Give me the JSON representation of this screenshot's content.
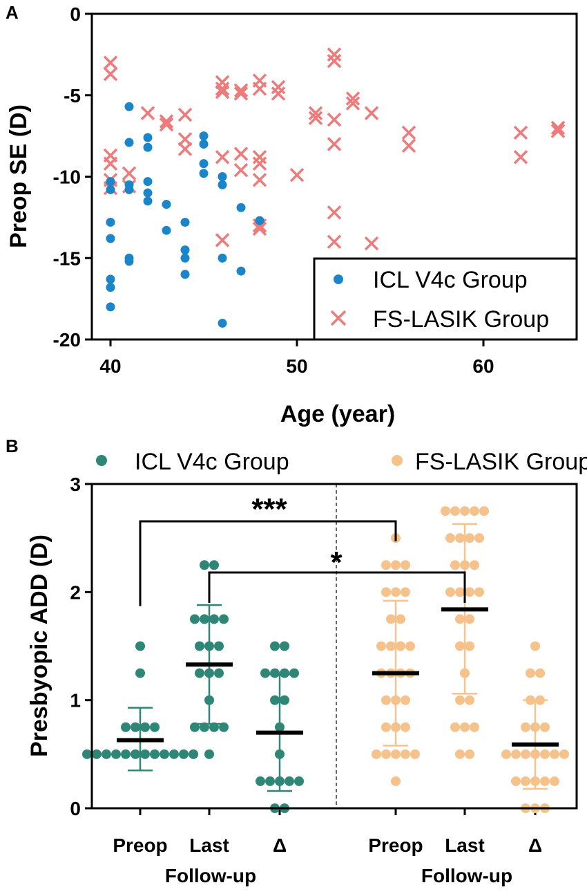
{
  "panel_a_label": "A",
  "panel_b_label": "B",
  "chart_data": [
    {
      "type": "scatter",
      "xlabel": "Age (year)",
      "ylabel": "Preop SE (D)",
      "xlim": [
        39,
        65
      ],
      "ylim": [
        -20,
        0
      ],
      "xticks": [
        40,
        50,
        60
      ],
      "yticks": [
        0,
        -5,
        -10,
        -15,
        -20
      ],
      "xtick_labels": [
        "40",
        "50",
        "60"
      ],
      "ytick_labels": [
        "0",
        "-5",
        "-10",
        "-15",
        "-20"
      ],
      "legend_position": "bottom-right",
      "series": [
        {
          "name": "ICL V4c Group",
          "marker": "circle",
          "color": "#1a86c9",
          "points": [
            [
              40,
              -10.3
            ],
            [
              40,
              -10.8
            ],
            [
              40,
              -12.8
            ],
            [
              40,
              -13.8
            ],
            [
              40,
              -16.3
            ],
            [
              40,
              -16.8
            ],
            [
              40,
              -18.0
            ],
            [
              41,
              -5.7
            ],
            [
              41,
              -7.9
            ],
            [
              41,
              -10.5
            ],
            [
              41,
              -10.8
            ],
            [
              41,
              -15.0
            ],
            [
              41,
              -15.2
            ],
            [
              42,
              -7.6
            ],
            [
              42,
              -8.2
            ],
            [
              42,
              -10.3
            ],
            [
              42,
              -11.0
            ],
            [
              42,
              -11.5
            ],
            [
              43,
              -11.7
            ],
            [
              43,
              -13.3
            ],
            [
              44,
              -12.8
            ],
            [
              44,
              -14.5
            ],
            [
              44,
              -15.0
            ],
            [
              44,
              -16.0
            ],
            [
              45,
              -7.5
            ],
            [
              45,
              -8.0
            ],
            [
              45,
              -9.2
            ],
            [
              45,
              -9.8
            ],
            [
              46,
              -10.0
            ],
            [
              46,
              -10.5
            ],
            [
              46,
              -15.0
            ],
            [
              46,
              -19.0
            ],
            [
              47,
              -11.9
            ],
            [
              47,
              -15.8
            ],
            [
              48,
              -12.7
            ]
          ]
        },
        {
          "name": "FS-LASIK Group",
          "marker": "x",
          "color": "#ee7b7b",
          "points": [
            [
              40,
              -3.0
            ],
            [
              40,
              -3.7
            ],
            [
              40,
              -8.7
            ],
            [
              40,
              -9.2
            ],
            [
              40,
              -10.2
            ],
            [
              40,
              -10.7
            ],
            [
              41,
              -9.8
            ],
            [
              41,
              -10.6
            ],
            [
              42,
              -6.1
            ],
            [
              43,
              -6.6
            ],
            [
              43,
              -6.8
            ],
            [
              44,
              -6.2
            ],
            [
              44,
              -7.7
            ],
            [
              44,
              -8.3
            ],
            [
              46,
              -4.2
            ],
            [
              46,
              -4.6
            ],
            [
              46,
              -4.8
            ],
            [
              46,
              -8.8
            ],
            [
              46,
              -13.9
            ],
            [
              47,
              -4.7
            ],
            [
              47,
              -4.9
            ],
            [
              47,
              -8.6
            ],
            [
              47,
              -9.6
            ],
            [
              48,
              -4.1
            ],
            [
              48,
              -4.6
            ],
            [
              48,
              -8.8
            ],
            [
              48,
              -9.2
            ],
            [
              48,
              -10.2
            ],
            [
              48,
              -13.0
            ],
            [
              48,
              -13.2
            ],
            [
              49,
              -4.5
            ],
            [
              49,
              -4.9
            ],
            [
              50,
              -9.9
            ],
            [
              51,
              -6.1
            ],
            [
              51,
              -6.4
            ],
            [
              52,
              -2.5
            ],
            [
              52,
              -2.9
            ],
            [
              52,
              -6.5
            ],
            [
              52,
              -8.0
            ],
            [
              52,
              -12.2
            ],
            [
              52,
              -14.0
            ],
            [
              53,
              -5.2
            ],
            [
              53,
              -5.5
            ],
            [
              54,
              -6.1
            ],
            [
              54,
              -14.1
            ],
            [
              56,
              -7.3
            ],
            [
              56,
              -8.1
            ],
            [
              62,
              -7.3
            ],
            [
              62,
              -8.8
            ],
            [
              64,
              -7.0
            ],
            [
              64,
              -7.2
            ]
          ]
        }
      ]
    },
    {
      "type": "scatter",
      "subtype": "dot-plot-with-mean-sd",
      "ylabel": "Presbyopic ADD (D)",
      "ylim": [
        0,
        3
      ],
      "yticks": [
        0,
        1,
        2,
        3
      ],
      "ytick_labels": [
        "0",
        "1",
        "2",
        "3"
      ],
      "legend_position": "top",
      "category_labels": [
        "Preop",
        "Last",
        "Δ",
        "Preop",
        "Last",
        "Δ"
      ],
      "group_sublabels": [
        "Follow-up",
        "Follow-up"
      ],
      "significance": [
        {
          "label": "***",
          "from": 0,
          "to": 3,
          "height": 2.75
        },
        {
          "label": "*",
          "from": 1,
          "to": 4,
          "height": 2.25
        }
      ],
      "series": [
        {
          "name": "ICL V4c Group",
          "color": "#2e8676",
          "groups": [
            {
              "category": "Preop",
              "mean": 0.63,
              "sd_low": 0.35,
              "sd_high": 0.93,
              "values": [
                1.5,
                1.25,
                0.75,
                0.75,
                0.75,
                0.75,
                0.5,
                0.5,
                0.5,
                0.5,
                0.5,
                0.5,
                0.5,
                0.5,
                0.5,
                0.5,
                0.5,
                0.5
              ]
            },
            {
              "category": "Last",
              "mean": 1.33,
              "sd_low": 0.78,
              "sd_high": 1.88,
              "values": [
                2.25,
                2.25,
                1.75,
                1.75,
                1.75,
                1.75,
                1.5,
                1.5,
                1.5,
                1.25,
                1.25,
                1.25,
                1.0,
                0.75,
                0.75,
                0.75,
                0.75,
                0.5
              ]
            },
            {
              "category": "Δ",
              "mean": 0.7,
              "sd_low": 0.16,
              "sd_high": 1.24,
              "values": [
                1.5,
                1.5,
                1.25,
                1.25,
                1.25,
                1.25,
                1.0,
                1.0,
                0.75,
                0.5,
                0.25,
                0.25,
                0.25,
                0.25,
                0.25,
                0.0,
                0.0
              ]
            }
          ]
        },
        {
          "name": "FS-LASIK Group",
          "color": "#f5c28c",
          "groups": [
            {
              "category": "Preop",
              "mean": 1.25,
              "sd_low": 0.58,
              "sd_high": 1.92,
              "values": [
                2.5,
                2.25,
                2.25,
                2.25,
                2.0,
                2.0,
                2.0,
                1.75,
                1.75,
                1.5,
                1.5,
                1.5,
                1.5,
                1.25,
                1.25,
                1.25,
                1.25,
                1.0,
                1.0,
                1.0,
                0.75,
                0.75,
                0.75,
                0.5,
                0.5,
                0.5,
                0.5,
                0.5,
                0.25
              ]
            },
            {
              "category": "Last",
              "mean": 1.84,
              "sd_low": 1.06,
              "sd_high": 2.63,
              "values": [
                2.75,
                2.75,
                2.75,
                2.75,
                2.75,
                2.5,
                2.5,
                2.5,
                2.5,
                2.25,
                2.25,
                2.25,
                2.0,
                2.0,
                2.0,
                2.0,
                1.75,
                1.75,
                1.5,
                1.5,
                1.25,
                1.0,
                1.0,
                0.75,
                0.75,
                0.75,
                0.5,
                0.5
              ]
            },
            {
              "category": "Δ",
              "mean": 0.59,
              "sd_low": 0.18,
              "sd_high": 1.0,
              "values": [
                1.5,
                1.25,
                1.25,
                1.0,
                1.0,
                0.75,
                0.75,
                0.75,
                0.5,
                0.5,
                0.5,
                0.5,
                0.5,
                0.5,
                0.5,
                0.25,
                0.25,
                0.25,
                0.25,
                0.25,
                0.0,
                0.0,
                0.0
              ]
            }
          ]
        }
      ]
    }
  ]
}
